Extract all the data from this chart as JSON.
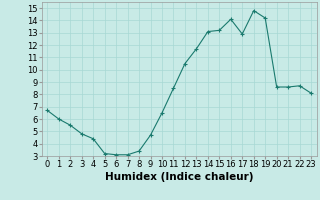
{
  "x": [
    0,
    1,
    2,
    3,
    4,
    5,
    6,
    7,
    8,
    9,
    10,
    11,
    12,
    13,
    14,
    15,
    16,
    17,
    18,
    19,
    20,
    21,
    22,
    23
  ],
  "y": [
    6.7,
    6.0,
    5.5,
    4.8,
    4.4,
    3.2,
    3.1,
    3.1,
    3.4,
    4.7,
    6.5,
    8.5,
    10.5,
    11.7,
    13.1,
    13.2,
    14.1,
    12.9,
    14.8,
    14.2,
    8.6,
    8.6,
    8.7,
    8.1
  ],
  "xlabel": "Humidex (Indice chaleur)",
  "xlim": [
    -0.5,
    23.5
  ],
  "ylim": [
    3,
    15.5
  ],
  "yticks": [
    3,
    4,
    5,
    6,
    7,
    8,
    9,
    10,
    11,
    12,
    13,
    14,
    15
  ],
  "xticks": [
    0,
    1,
    2,
    3,
    4,
    5,
    6,
    7,
    8,
    9,
    10,
    11,
    12,
    13,
    14,
    15,
    16,
    17,
    18,
    19,
    20,
    21,
    22,
    23
  ],
  "line_color": "#1a7a6e",
  "marker": "+",
  "bg_color": "#c8eae6",
  "grid_color": "#a8d8d4",
  "label_fontsize": 7.5,
  "tick_fontsize": 6.0
}
